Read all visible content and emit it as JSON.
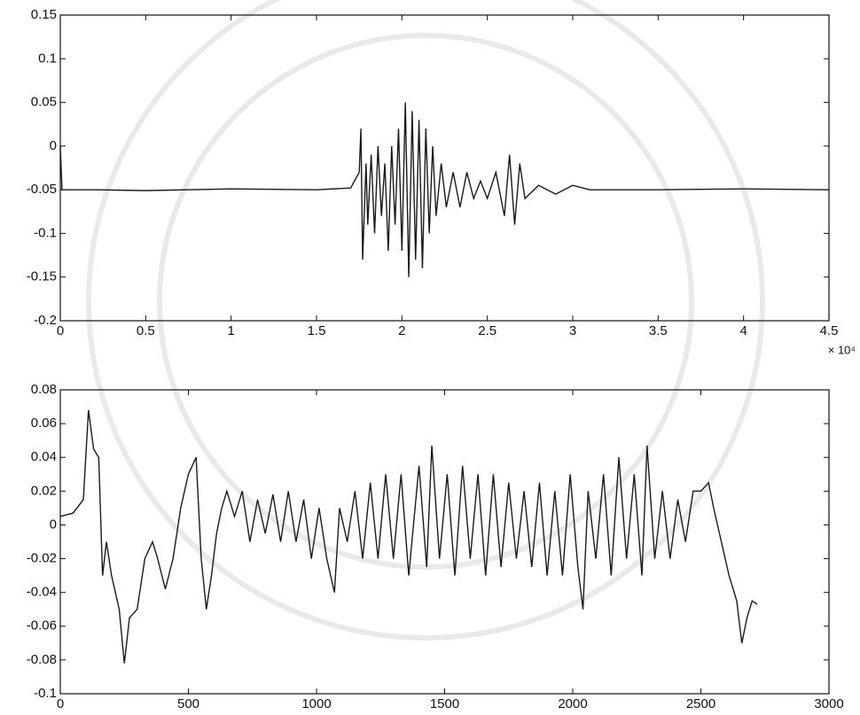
{
  "chart_data": [
    {
      "type": "line",
      "x_multiplier": "× 10⁴",
      "color": "#1a1a1a",
      "xlim": [
        0,
        4.5
      ],
      "ylim": [
        -0.2,
        0.15
      ],
      "xticks": [
        0,
        0.5,
        1,
        1.5,
        2,
        2.5,
        3,
        3.5,
        4,
        4.5
      ],
      "yticks": [
        -0.2,
        -0.15,
        -0.1,
        -0.05,
        0,
        0.05,
        0.1,
        0.15
      ],
      "x": [
        0,
        0.01,
        0.2,
        0.5,
        1.0,
        1.5,
        1.7,
        1.75,
        1.76,
        1.77,
        1.79,
        1.8,
        1.82,
        1.84,
        1.86,
        1.88,
        1.9,
        1.92,
        1.94,
        1.96,
        1.98,
        2.0,
        2.02,
        2.04,
        2.06,
        2.08,
        2.1,
        2.12,
        2.14,
        2.16,
        2.18,
        2.2,
        2.23,
        2.26,
        2.3,
        2.34,
        2.38,
        2.42,
        2.46,
        2.5,
        2.55,
        2.6,
        2.63,
        2.66,
        2.69,
        2.72,
        2.8,
        2.9,
        3.0,
        3.1,
        3.5,
        4.0,
        4.5
      ],
      "values": [
        0,
        -0.05,
        -0.05,
        -0.051,
        -0.049,
        -0.05,
        -0.048,
        -0.03,
        0.02,
        -0.13,
        -0.02,
        -0.09,
        -0.01,
        -0.1,
        0.0,
        -0.08,
        -0.02,
        -0.12,
        0.0,
        -0.09,
        0.02,
        -0.12,
        0.05,
        -0.15,
        0.04,
        -0.13,
        0.03,
        -0.14,
        0.02,
        -0.1,
        0.0,
        -0.08,
        -0.02,
        -0.07,
        -0.03,
        -0.07,
        -0.03,
        -0.06,
        -0.04,
        -0.06,
        -0.03,
        -0.08,
        -0.01,
        -0.09,
        -0.02,
        -0.06,
        -0.045,
        -0.055,
        -0.045,
        -0.05,
        -0.05,
        -0.049,
        -0.05
      ]
    },
    {
      "type": "line",
      "color": "#1a1a1a",
      "xlim": [
        0,
        3000
      ],
      "ylim": [
        -0.1,
        0.08
      ],
      "xticks": [
        0,
        500,
        1000,
        1500,
        2000,
        2500,
        3000
      ],
      "yticks": [
        -0.1,
        -0.08,
        -0.06,
        -0.04,
        -0.02,
        0,
        0.02,
        0.04,
        0.06,
        0.08
      ],
      "x": [
        0,
        50,
        90,
        110,
        130,
        150,
        165,
        180,
        200,
        230,
        250,
        270,
        300,
        330,
        360,
        380,
        410,
        440,
        470,
        500,
        530,
        550,
        570,
        590,
        610,
        630,
        650,
        680,
        710,
        740,
        770,
        800,
        830,
        860,
        890,
        920,
        950,
        980,
        1010,
        1040,
        1070,
        1090,
        1120,
        1150,
        1180,
        1210,
        1240,
        1270,
        1300,
        1330,
        1360,
        1400,
        1430,
        1450,
        1480,
        1510,
        1540,
        1570,
        1600,
        1630,
        1660,
        1690,
        1720,
        1750,
        1780,
        1810,
        1840,
        1870,
        1900,
        1930,
        1960,
        1990,
        2020,
        2040,
        2060,
        2090,
        2120,
        2150,
        2180,
        2210,
        2240,
        2270,
        2290,
        2320,
        2350,
        2380,
        2410,
        2440,
        2470,
        2500,
        2530,
        2550,
        2580,
        2610,
        2640,
        2660,
        2680,
        2700,
        2720
      ],
      "values": [
        0.005,
        0.007,
        0.015,
        0.068,
        0.045,
        0.04,
        -0.03,
        -0.01,
        -0.03,
        -0.05,
        -0.082,
        -0.055,
        -0.05,
        -0.02,
        -0.01,
        -0.02,
        -0.038,
        -0.02,
        0.01,
        0.03,
        0.04,
        -0.02,
        -0.05,
        -0.03,
        -0.005,
        0.01,
        0.02,
        0.005,
        0.02,
        -0.01,
        0.015,
        -0.005,
        0.018,
        -0.01,
        0.02,
        -0.01,
        0.015,
        -0.02,
        0.01,
        -0.02,
        -0.04,
        0.01,
        -0.01,
        0.02,
        -0.02,
        0.025,
        -0.02,
        0.03,
        -0.02,
        0.03,
        -0.03,
        0.035,
        -0.025,
        0.047,
        -0.02,
        0.03,
        -0.03,
        0.035,
        -0.02,
        0.03,
        -0.03,
        0.03,
        -0.025,
        0.025,
        -0.02,
        0.02,
        -0.025,
        0.025,
        -0.03,
        0.02,
        -0.03,
        0.03,
        -0.025,
        -0.05,
        0.02,
        -0.02,
        0.03,
        -0.03,
        0.04,
        -0.02,
        0.03,
        -0.03,
        0.047,
        -0.02,
        0.02,
        -0.02,
        0.015,
        -0.01,
        0.02,
        0.02,
        0.025,
        0.01,
        -0.01,
        -0.03,
        -0.045,
        -0.07,
        -0.055,
        -0.045,
        -0.047
      ]
    }
  ]
}
